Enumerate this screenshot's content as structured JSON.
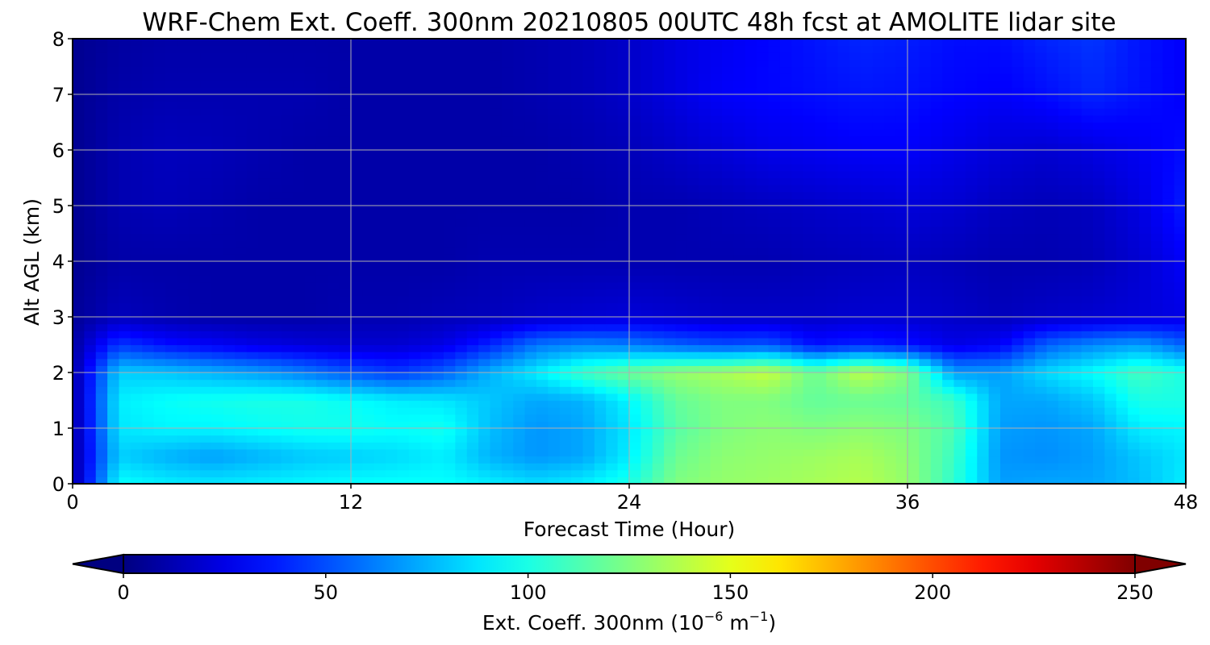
{
  "chart_data": {
    "type": "heatmap",
    "title": "WRF-Chem Ext. Coeff. 300nm  20210805 00UTC 48h fcst at AMOLITE lidar site",
    "xlabel": "Forecast Time (Hour)",
    "ylabel": "Alt AGL (km)",
    "xlim": [
      0,
      48
    ],
    "ylim": [
      0,
      8
    ],
    "xticks": [
      0,
      12,
      24,
      36,
      48
    ],
    "yticks": [
      0,
      1,
      2,
      3,
      4,
      5,
      6,
      7,
      8
    ],
    "grid": true,
    "x_hours": [
      0,
      2,
      4,
      6,
      8,
      10,
      12,
      14,
      16,
      18,
      20,
      22,
      24,
      26,
      28,
      30,
      32,
      34,
      36,
      38,
      40,
      42,
      44,
      46,
      48
    ],
    "y_km": [
      0,
      0.5,
      1,
      1.5,
      2,
      2.5,
      3,
      4,
      5,
      6,
      7,
      8
    ],
    "values": [
      [
        8,
        95,
        90,
        88,
        90,
        92,
        94,
        95,
        95,
        90,
        85,
        90,
        100,
        125,
        130,
        132,
        135,
        138,
        130,
        105,
        70,
        72,
        72,
        78,
        90
      ],
      [
        8,
        82,
        75,
        70,
        75,
        80,
        82,
        85,
        90,
        75,
        68,
        72,
        90,
        120,
        128,
        130,
        132,
        135,
        128,
        108,
        68,
        66,
        70,
        80,
        88
      ],
      [
        8,
        88,
        92,
        92,
        95,
        98,
        98,
        95,
        98,
        78,
        68,
        72,
        88,
        115,
        125,
        128,
        125,
        128,
        125,
        112,
        70,
        68,
        72,
        90,
        92
      ],
      [
        8,
        90,
        95,
        98,
        100,
        100,
        95,
        90,
        88,
        80,
        72,
        75,
        92,
        118,
        125,
        125,
        118,
        120,
        118,
        108,
        72,
        72,
        80,
        100,
        100
      ],
      [
        8,
        82,
        80,
        75,
        70,
        62,
        52,
        45,
        55,
        75,
        90,
        108,
        120,
        130,
        135,
        142,
        120,
        140,
        125,
        70,
        70,
        85,
        95,
        110,
        100
      ],
      [
        8,
        45,
        35,
        30,
        25,
        22,
        20,
        20,
        25,
        40,
        60,
        65,
        62,
        55,
        50,
        52,
        35,
        40,
        35,
        25,
        30,
        55,
        65,
        70,
        55
      ],
      [
        6,
        15,
        12,
        10,
        10,
        10,
        12,
        12,
        14,
        15,
        18,
        20,
        22,
        20,
        18,
        18,
        18,
        20,
        20,
        18,
        15,
        18,
        20,
        22,
        25
      ],
      [
        4,
        10,
        10,
        10,
        10,
        10,
        10,
        10,
        10,
        12,
        12,
        12,
        12,
        12,
        12,
        12,
        14,
        15,
        16,
        14,
        12,
        12,
        14,
        20,
        30
      ],
      [
        4,
        12,
        14,
        12,
        10,
        10,
        10,
        10,
        10,
        10,
        10,
        10,
        12,
        12,
        14,
        16,
        18,
        20,
        22,
        20,
        16,
        14,
        16,
        24,
        38
      ],
      [
        4,
        12,
        15,
        14,
        12,
        10,
        10,
        10,
        10,
        10,
        10,
        12,
        14,
        18,
        22,
        26,
        28,
        30,
        30,
        26,
        22,
        20,
        24,
        28,
        34
      ],
      [
        4,
        10,
        12,
        12,
        12,
        12,
        10,
        10,
        10,
        10,
        12,
        14,
        18,
        24,
        30,
        32,
        34,
        36,
        35,
        32,
        30,
        34,
        40,
        35,
        30
      ],
      [
        4,
        8,
        10,
        10,
        10,
        10,
        10,
        10,
        10,
        10,
        12,
        14,
        18,
        24,
        28,
        32,
        36,
        40,
        38,
        34,
        34,
        40,
        44,
        36,
        30
      ]
    ],
    "colorbar": {
      "label_main": "Ext. Coeff. 300nm  (10",
      "label_exp1": "−6",
      "label_mid": " m",
      "label_exp2": "−1",
      "label_end": ")",
      "range": [
        0,
        250
      ],
      "ticks": [
        0,
        50,
        100,
        150,
        200,
        250
      ],
      "colormap": "jet",
      "extend": "both"
    }
  }
}
